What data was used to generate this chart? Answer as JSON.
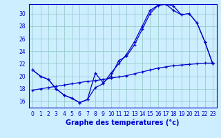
{
  "xlabel": "Graphe des températures (°c)",
  "background_color": "#cceeff",
  "line_color": "#0000cc",
  "grid_color": "#99cccc",
  "ylim": [
    15.0,
    31.5
  ],
  "xlim": [
    -0.5,
    23.5
  ],
  "yticks": [
    16,
    18,
    20,
    22,
    24,
    26,
    28,
    30
  ],
  "xticks": [
    0,
    1,
    2,
    3,
    4,
    5,
    6,
    7,
    8,
    9,
    10,
    11,
    12,
    13,
    14,
    15,
    16,
    17,
    18,
    19,
    20,
    21,
    22,
    23
  ],
  "line1_x": [
    0,
    1,
    2,
    3,
    4,
    5,
    6,
    7,
    8,
    9,
    10,
    11,
    12,
    13,
    14,
    15,
    16,
    17,
    18,
    19,
    20,
    21,
    22,
    23
  ],
  "line1_y": [
    21.0,
    20.0,
    19.5,
    18.0,
    17.0,
    16.5,
    15.8,
    16.3,
    20.5,
    19.0,
    20.0,
    22.5,
    23.2,
    25.0,
    27.5,
    30.0,
    31.3,
    31.5,
    31.2,
    29.8,
    30.0,
    28.5,
    25.5,
    22.0
  ],
  "line2_x": [
    0,
    1,
    2,
    3,
    4,
    5,
    6,
    7,
    8,
    9,
    10,
    11,
    12,
    13,
    14,
    15,
    16,
    17,
    18,
    19,
    20,
    21,
    22,
    23
  ],
  "line2_y": [
    21.0,
    20.0,
    19.5,
    18.0,
    17.0,
    16.5,
    15.8,
    16.3,
    18.2,
    18.8,
    20.5,
    22.0,
    23.5,
    25.5,
    28.0,
    30.5,
    31.3,
    31.5,
    30.5,
    29.8,
    30.0,
    28.5,
    25.5,
    22.0
  ],
  "line3_x": [
    0,
    1,
    2,
    3,
    4,
    5,
    6,
    7,
    8,
    9,
    10,
    11,
    12,
    13,
    14,
    15,
    16,
    17,
    18,
    19,
    20,
    21,
    22,
    23
  ],
  "line3_y": [
    17.8,
    18.0,
    18.2,
    18.4,
    18.6,
    18.8,
    19.0,
    19.2,
    19.3,
    19.5,
    19.7,
    19.9,
    20.1,
    20.4,
    20.7,
    21.0,
    21.3,
    21.5,
    21.7,
    21.8,
    21.9,
    22.0,
    22.1,
    22.1
  ],
  "xlabel_fontsize": 7,
  "tick_fontsize": 5.5
}
